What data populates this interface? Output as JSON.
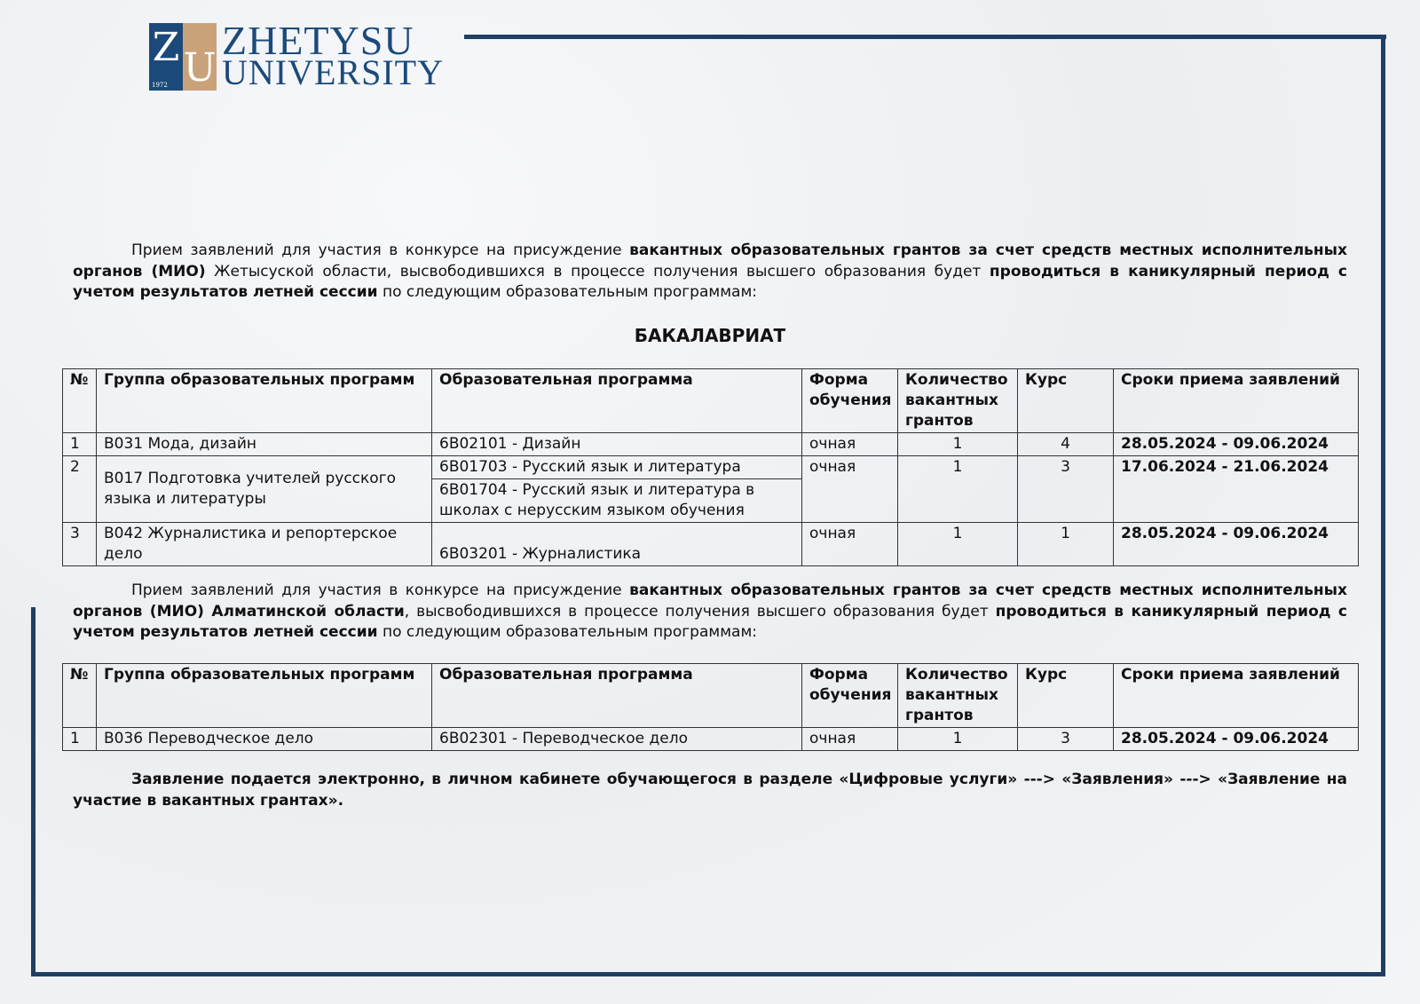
{
  "logo": {
    "letters": "ZU",
    "year": "1972",
    "line1": "ZHETYSU",
    "line2": "UNIVERSITY"
  },
  "colors": {
    "frame": "#1f3e63",
    "brand_blue": "#1b4a7a",
    "brand_tan": "#c9a27a"
  },
  "para1": {
    "t1": "Прием заявлений для участия в конкурсе на присуждение ",
    "b1": "вакантных образовательных грантов за счет средств местных исполнительных органов (МИО)",
    "t2": " Жетысуской области, высвободившихся в процессе получения высшего образования будет ",
    "b2": "проводиться в каникулярный период с учетом результатов летней сессии",
    "t3": " по следующим образовательным программам:"
  },
  "heading": "БАКАЛАВРИАТ",
  "headers": [
    "№",
    "Группа образовательных программ",
    "Образовательная программа",
    "Форма обучения",
    "Количество вакантных грантов",
    "Курс",
    "Сроки приема заявлений"
  ],
  "table1": [
    {
      "n": "1",
      "group": "В031 Мода, дизайн",
      "programs": [
        "6В02101 - Дизайн"
      ],
      "form": "очная",
      "grants": "1",
      "course": "4",
      "dates": "28.05.2024 - 09.06.2024"
    },
    {
      "n": "2",
      "group": "В017 Подготовка учителей русского языка и литературы",
      "programs": [
        "6В01703 - Русский язык и литература",
        "6В01704 - Русский язык и литература в школах с нерусским языком обучения"
      ],
      "form": "очная",
      "grants": "1",
      "course": "3",
      "dates": "17.06.2024 - 21.06.2024"
    },
    {
      "n": "3",
      "group": "В042 Журналистика и репортерское дело",
      "programs": [
        "6В03201 - Журналистика"
      ],
      "form": "очная",
      "grants": "1",
      "course": "1",
      "dates": "28.05.2024 - 09.06.2024"
    }
  ],
  "para2": {
    "t1": "Прием заявлений для участия в конкурсе на присуждение ",
    "b1": "вакантных образовательных грантов за счет средств местных исполнительных органов (МИО) Алматинской области",
    "t2": ", высвободившихся в процессе получения высшего образования будет ",
    "b2": "проводиться в каникулярный период с учетом результатов летней сессии",
    "t3": " по следующим образовательным программам:"
  },
  "table2": [
    {
      "n": "1",
      "group": "В036 Переводческое дело",
      "programs": [
        "6В02301 - Переводческое дело"
      ],
      "form": "очная",
      "grants": "1",
      "course": "3",
      "dates": "28.05.2024 - 09.06.2024"
    }
  ],
  "para3": "Заявление подается электронно, в личном кабинете обучающегося в разделе «Цифровые услуги» ---> «Заявления» ---> «Заявление на участие в вакантных грантах»."
}
